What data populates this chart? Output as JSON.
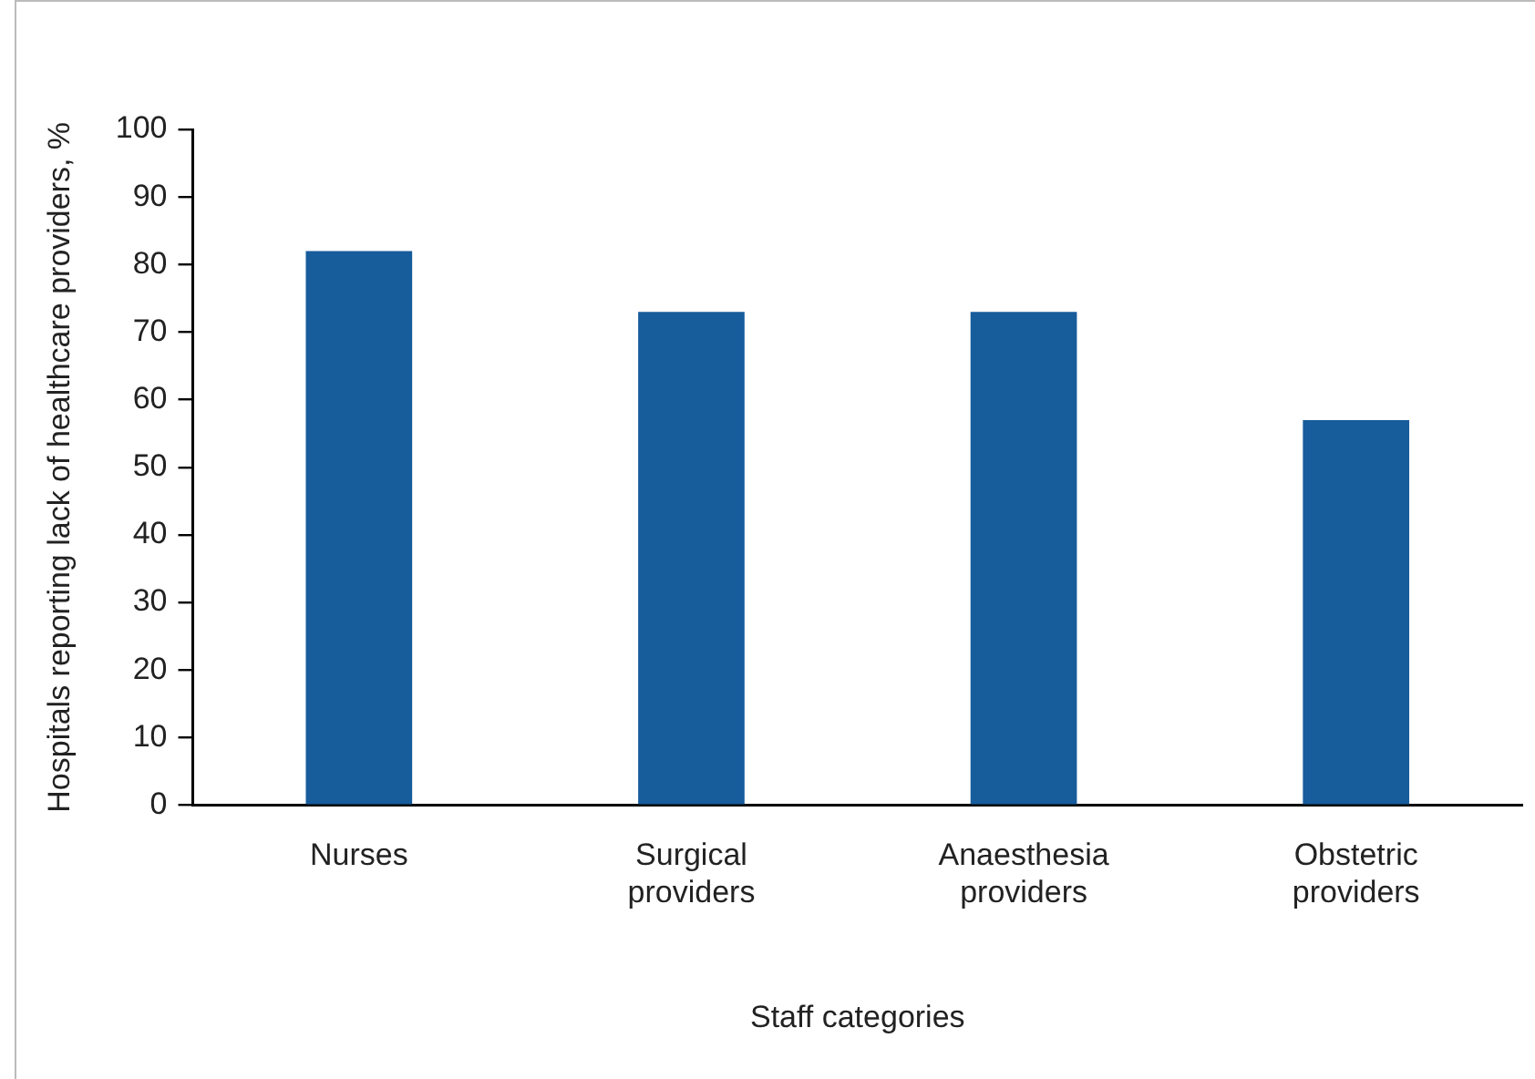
{
  "chart_data": {
    "type": "bar",
    "xlabel": "Staff categories",
    "ylabel": "Hospitals reporting lack of healthcare providers, %",
    "categories": [
      "Nurses",
      "Surgical providers",
      "Anaesthesia providers",
      "Obstetric providers"
    ],
    "values": [
      82,
      73,
      73,
      57
    ],
    "color": "#175c9b",
    "ylim": [
      0,
      100
    ],
    "yticks": [
      0,
      10,
      20,
      30,
      40,
      50,
      60,
      70,
      80,
      90,
      100
    ],
    "grid": false
  }
}
